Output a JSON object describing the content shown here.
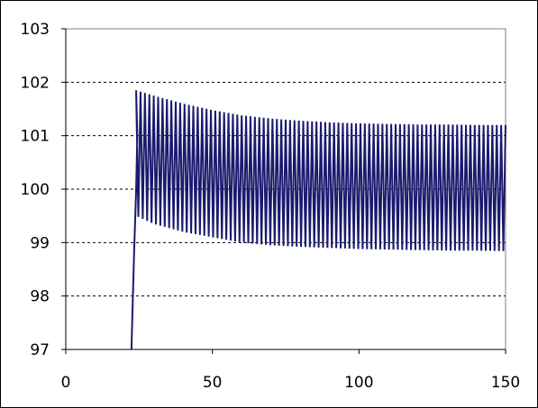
{
  "chart_data": {
    "type": "line",
    "title": "",
    "xlabel": "",
    "ylabel": "",
    "xlim": [
      0,
      150
    ],
    "ylim": [
      97,
      103
    ],
    "x_ticks": [
      "0",
      "50",
      "100",
      "150"
    ],
    "y_ticks": [
      "97",
      "98",
      "99",
      "100",
      "101",
      "102",
      "103"
    ],
    "grid": {
      "horizontal": true,
      "style": "dashed",
      "vertical": false
    },
    "legend": "none",
    "series": [
      {
        "color": "#1a1a6e",
        "oscillation_period": 1.5,
        "rise": {
          "x": [
            22.4,
            23.3,
            24.0,
            24.4
          ],
          "y": [
            97,
            98.8,
            100.0,
            101.0
          ]
        },
        "envelope_x": [
          24,
          30,
          40,
          50,
          60,
          70,
          80,
          90,
          100,
          110,
          120,
          130,
          140,
          150
        ],
        "envelope_max": [
          101.85,
          101.75,
          101.6,
          101.48,
          101.38,
          101.32,
          101.28,
          101.25,
          101.23,
          101.22,
          101.21,
          101.21,
          101.2,
          101.2
        ],
        "envelope_min": [
          99.5,
          99.35,
          99.2,
          99.1,
          99.0,
          98.95,
          98.92,
          98.9,
          98.88,
          98.87,
          98.86,
          98.85,
          98.85,
          98.84
        ]
      }
    ]
  }
}
